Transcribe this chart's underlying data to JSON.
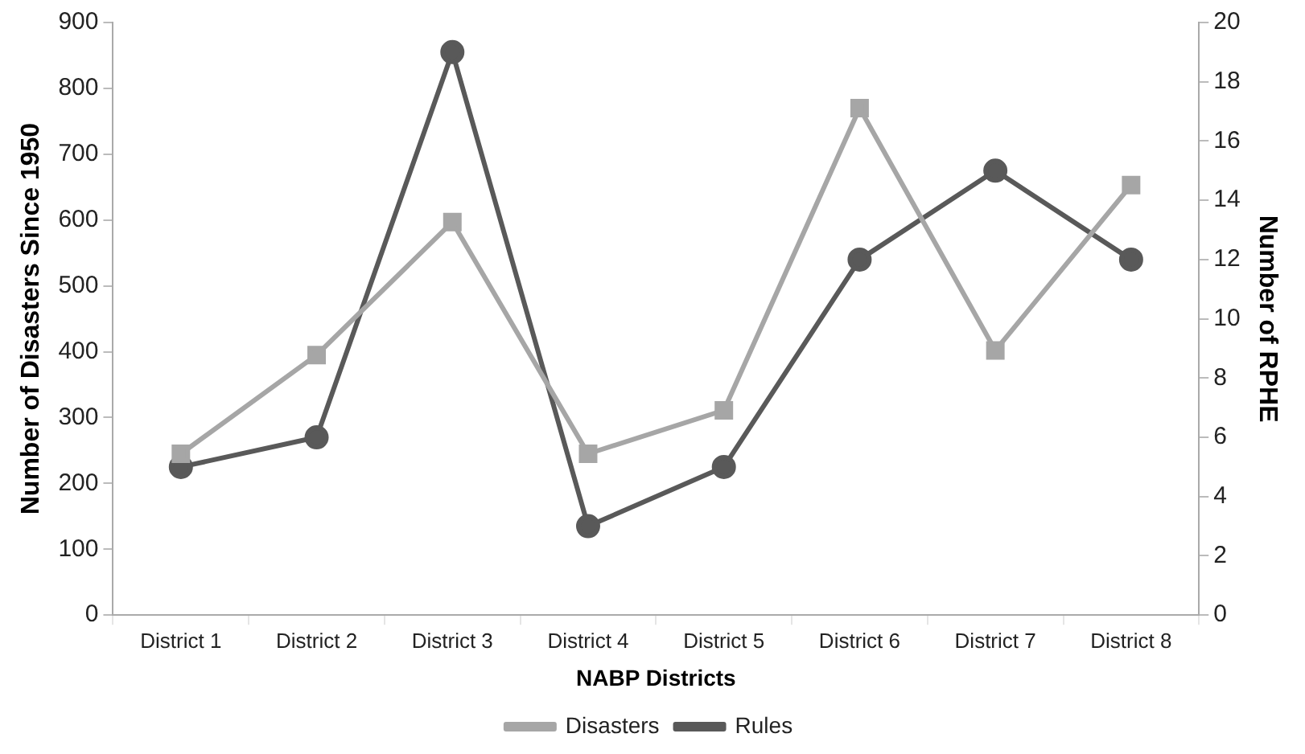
{
  "chart_data": {
    "type": "line",
    "xlabel": "NABP Districts",
    "ylabel": "Number of Disasters Since 1950",
    "y2label": "Number of RPHE",
    "categories": [
      "District 1",
      "District 2",
      "District 3",
      "District 4",
      "District 5",
      "District 6",
      "District 7",
      "District 8"
    ],
    "series": [
      {
        "name": "Disasters",
        "color": "#a6a6a6",
        "marker": "square",
        "values": [
          245,
          395,
          597,
          245,
          311,
          770,
          402,
          653
        ]
      },
      {
        "name": "Rules",
        "color": "#595959",
        "marker": "circle",
        "axis": "y2",
        "values": [
          5,
          6,
          19,
          3,
          5,
          12,
          15,
          12
        ]
      }
    ],
    "ylim": [
      0,
      900
    ],
    "yticks": [
      0,
      100,
      200,
      300,
      400,
      500,
      600,
      700,
      800,
      900
    ],
    "y2lim": [
      0,
      20
    ],
    "y2ticks": [
      0,
      2,
      4,
      6,
      8,
      10,
      12,
      14,
      16,
      18,
      20
    ],
    "grid": false,
    "legend": "bottom",
    "line_style": "solid"
  }
}
